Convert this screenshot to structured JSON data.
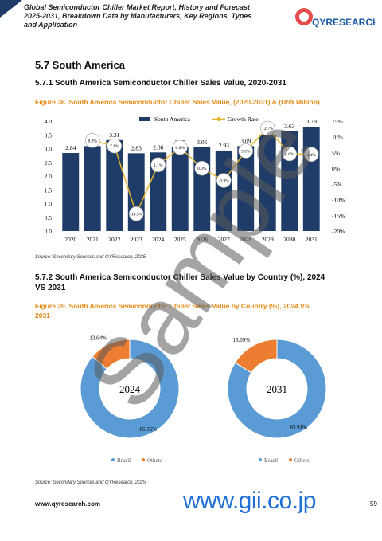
{
  "header": {
    "title": "Global Semiconductor Chiller Market Report, History and Forecast 2025-2031, Breakdown Data by Manufacturers, Key Regions, Types and Application",
    "logo": "QYRESEARCH"
  },
  "section": {
    "heading": "5.7 South America",
    "sub1": "5.7.1 South America Semiconductor Chiller Sales Value, 2020-2031",
    "figure1": "Figure 38.  South America Semiconductor Chiller Sales Value, (2020-2031) & (US$ Million)",
    "source1": "Source: Secondary Sources and QYResearch, 2025",
    "sub2": "5.7.2 South America Semiconductor Chiller Sales Value by Country (%), 2024 VS 2031",
    "figure2": "Figure 39.  South America Semiconductor Chiller Sales Value by Country (%), 2024 VS 2031",
    "source2": "Source: Secondary Sources and QYResearch, 2025"
  },
  "footer": {
    "site": "www.qyresearch.com",
    "watermark_url": "www.gii.co.jp",
    "page_number": "59"
  },
  "watermark": "Sample",
  "chart_data": [
    {
      "type": "bar",
      "categories": [
        "2020",
        "2021",
        "2022",
        "2023",
        "2024",
        "2025",
        "2026",
        "2027",
        "2028",
        "2029",
        "2030",
        "2031"
      ],
      "series": [
        {
          "name": "South America",
          "type": "bar",
          "color": "#1f3c68",
          "values": [
            2.84,
            3.09,
            3.31,
            2.83,
            2.86,
            3.05,
            3.05,
            2.93,
            3.09,
            3.48,
            3.63,
            3.79
          ]
        },
        {
          "name": "Growth Rate",
          "type": "line",
          "axis": "y2",
          "color": "#e8b52a",
          "values": [
            null,
            8.8,
            7.1,
            -14.5,
            1.1,
            6.6,
            0.0,
            -3.9,
            5.5,
            12.7,
            4.6,
            4.4
          ],
          "value_labels": [
            null,
            "8.8%",
            "7.1%",
            "-14.5%",
            "1.1%",
            "6.6%",
            "0.0%",
            "-3.9%",
            "5.5%",
            "12.7%",
            "4.6%",
            "4.4%"
          ]
        }
      ],
      "ylim": [
        0,
        4
      ],
      "yticks": [
        {
          "value": 0,
          "label": "0.0"
        },
        0.5,
        {
          "value": 1,
          "label": "1.0"
        },
        1.5,
        {
          "value": 2,
          "label": "2.0"
        },
        2.5,
        {
          "value": 3,
          "label": "3.0"
        },
        3.5,
        {
          "value": 4,
          "label": "4.0"
        }
      ],
      "y2lim": [
        -20,
        15
      ],
      "y2ticks": [
        {
          "value": 15,
          "label": "15%"
        },
        {
          "value": 10,
          "label": "10%"
        },
        {
          "value": 5,
          "label": "5%"
        },
        {
          "value": 0,
          "label": "0%"
        },
        {
          "value": -5,
          "label": "-5%"
        },
        {
          "value": -10,
          "label": "-10%"
        },
        {
          "value": -15,
          "label": "-15%"
        },
        {
          "value": -20,
          "label": "-20%"
        }
      ],
      "legend": "top"
    },
    {
      "type": "pie",
      "center_label": "2024",
      "categories": [
        "Brazil",
        "Others"
      ],
      "values": [
        86.36,
        13.64
      ],
      "value_labels": [
        "86.36%",
        "13.64%"
      ],
      "colors": [
        "#5b9bd5",
        "#ed7d31"
      ]
    },
    {
      "type": "pie",
      "center_label": "2031",
      "categories": [
        "Brazil",
        "Others"
      ],
      "values": [
        83.91,
        16.09
      ],
      "value_labels": [
        "83.91%",
        "16.09%"
      ],
      "colors": [
        "#5b9bd5",
        "#ed7d31"
      ]
    }
  ]
}
